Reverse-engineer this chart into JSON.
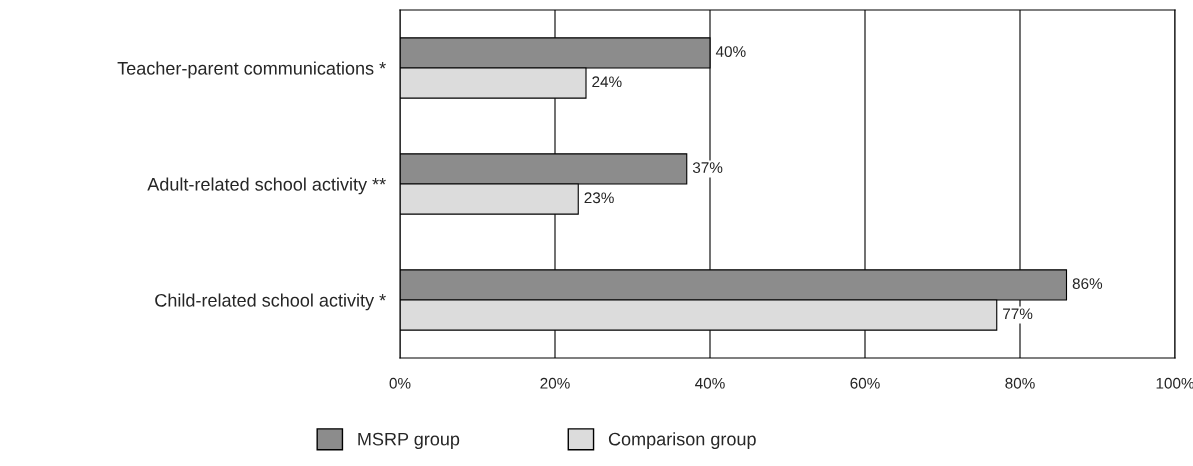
{
  "chart_data": {
    "type": "bar",
    "orientation": "horizontal",
    "categories": [
      "Teacher-parent communications *",
      "Adult-related school activity **",
      "Child-related school activity *"
    ],
    "series": [
      {
        "name": "MSRP group",
        "color": "#8c8c8c",
        "values": [
          40,
          37,
          86
        ],
        "value_labels": [
          "40%",
          "37%",
          "86%"
        ]
      },
      {
        "name": "Comparison group",
        "color": "#dcdcdc",
        "values": [
          24,
          23,
          77
        ],
        "value_labels": [
          "24%",
          "23%",
          "77%"
        ]
      }
    ],
    "xlim": [
      0,
      100
    ],
    "xticks": [
      {
        "value": 0,
        "label": "0%"
      },
      {
        "value": 20,
        "label": "20%"
      },
      {
        "value": 40,
        "label": "40%"
      },
      {
        "value": 60,
        "label": "60%"
      },
      {
        "value": 80,
        "label": "80%"
      },
      {
        "value": 100,
        "label": "100%"
      }
    ],
    "grid": "x",
    "legend": "bottom"
  }
}
